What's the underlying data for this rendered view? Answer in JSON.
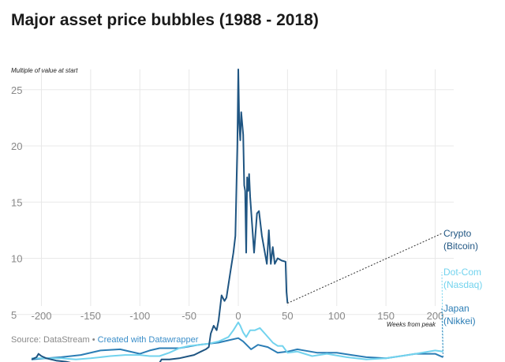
{
  "chart_data": {
    "type": "line",
    "title": "Major asset price bubbles (1988 - 2018)",
    "ylabel": "Multiple of value at start",
    "xlabel": "Weeks from peak",
    "xlim": [
      -210,
      210
    ],
    "ylim": [
      0.5,
      27
    ],
    "xticks": [
      -200,
      -150,
      -100,
      -50,
      0,
      50,
      100,
      150,
      200
    ],
    "yticks": [
      5,
      10,
      15,
      20,
      25
    ],
    "grid": true,
    "series": [
      {
        "name": "Crypto (Bitcoin)",
        "label_lines": [
          "Crypto",
          "(Bitcoin)"
        ],
        "color": "#1f5582",
        "points": [
          [
            -210,
            1.0
          ],
          [
            -205,
            1.2
          ],
          [
            -203,
            1.5
          ],
          [
            -200,
            1.3
          ],
          [
            -195,
            1.1
          ],
          [
            -185,
            0.9
          ],
          [
            -175,
            0.8
          ],
          [
            -165,
            0.6
          ],
          [
            -150,
            0.5
          ],
          [
            -135,
            0.45
          ],
          [
            -120,
            0.4
          ],
          [
            -110,
            0.55
          ],
          [
            -100,
            0.6
          ],
          [
            -90,
            0.6
          ],
          [
            -80,
            0.7
          ],
          [
            -78,
            1.0
          ],
          [
            -70,
            1.0
          ],
          [
            -60,
            1.1
          ],
          [
            -50,
            1.3
          ],
          [
            -45,
            1.4
          ],
          [
            -38,
            1.7
          ],
          [
            -33,
            1.9
          ],
          [
            -30,
            2.1
          ],
          [
            -28,
            3.3
          ],
          [
            -25,
            4.0
          ],
          [
            -22,
            3.6
          ],
          [
            -20,
            4.5
          ],
          [
            -17,
            6.7
          ],
          [
            -14,
            6.2
          ],
          [
            -12,
            6.5
          ],
          [
            -8,
            8.8
          ],
          [
            -5,
            10.5
          ],
          [
            -3,
            12
          ],
          [
            -1,
            20
          ],
          [
            0,
            28
          ],
          [
            1,
            22
          ],
          [
            2,
            20.5
          ],
          [
            3,
            23
          ],
          [
            5,
            21
          ],
          [
            6,
            16.5
          ],
          [
            7,
            16
          ],
          [
            8,
            10.5
          ],
          [
            9,
            17.2
          ],
          [
            10,
            16
          ],
          [
            11,
            17.5
          ],
          [
            12,
            15.5
          ],
          [
            14,
            13
          ],
          [
            16,
            10.5
          ],
          [
            19,
            14
          ],
          [
            21,
            14.2
          ],
          [
            24,
            12
          ],
          [
            27,
            10.5
          ],
          [
            29,
            9.5
          ],
          [
            31,
            12.5
          ],
          [
            33,
            9.5
          ],
          [
            35,
            11
          ],
          [
            37,
            9.5
          ],
          [
            40,
            10
          ],
          [
            44,
            9.8
          ],
          [
            48,
            9.7
          ],
          [
            49,
            7
          ],
          [
            50,
            6
          ]
        ]
      },
      {
        "name": "Dot-Com (Nasdaq)",
        "label_lines": [
          "Dot-Com",
          "(Nasdaq)"
        ],
        "color": "#72d3ee",
        "points": [
          [
            -210,
            1.1
          ],
          [
            -195,
            1.1
          ],
          [
            -180,
            1.1
          ],
          [
            -165,
            1.0
          ],
          [
            -150,
            1.1
          ],
          [
            -130,
            1.3
          ],
          [
            -115,
            1.4
          ],
          [
            -100,
            1.4
          ],
          [
            -90,
            1.3
          ],
          [
            -80,
            1.3
          ],
          [
            -70,
            1.6
          ],
          [
            -60,
            2.0
          ],
          [
            -50,
            2.2
          ],
          [
            -40,
            2.3
          ],
          [
            -30,
            2.4
          ],
          [
            -20,
            2.6
          ],
          [
            -10,
            3.0
          ],
          [
            -5,
            3.6
          ],
          [
            0,
            4.3
          ],
          [
            2,
            4.0
          ],
          [
            5,
            3.4
          ],
          [
            8,
            3.0
          ],
          [
            12,
            3.6
          ],
          [
            17,
            3.6
          ],
          [
            22,
            3.8
          ],
          [
            27,
            3.3
          ],
          [
            35,
            2.5
          ],
          [
            40,
            2.2
          ],
          [
            45,
            2.2
          ],
          [
            50,
            1.6
          ],
          [
            60,
            1.7
          ],
          [
            75,
            1.3
          ],
          [
            90,
            1.5
          ],
          [
            110,
            1.2
          ],
          [
            130,
            1.0
          ],
          [
            150,
            1.1
          ],
          [
            165,
            1.3
          ],
          [
            180,
            1.5
          ],
          [
            200,
            1.8
          ],
          [
            208,
            1.7
          ]
        ]
      },
      {
        "name": "Japan (Nikkei)",
        "label_lines": [
          "Japan",
          "(Nikkei)"
        ],
        "color": "#2b7db5",
        "points": [
          [
            -210,
            1.0
          ],
          [
            -195,
            1.1
          ],
          [
            -180,
            1.2
          ],
          [
            -160,
            1.4
          ],
          [
            -140,
            1.8
          ],
          [
            -120,
            1.9
          ],
          [
            -100,
            1.5
          ],
          [
            -90,
            1.8
          ],
          [
            -80,
            2.0
          ],
          [
            -60,
            2.0
          ],
          [
            -40,
            2.3
          ],
          [
            -20,
            2.5
          ],
          [
            -10,
            2.7
          ],
          [
            0,
            2.9
          ],
          [
            5,
            2.6
          ],
          [
            13,
            1.9
          ],
          [
            20,
            2.3
          ],
          [
            30,
            2.1
          ],
          [
            40,
            1.6
          ],
          [
            50,
            1.7
          ],
          [
            60,
            1.9
          ],
          [
            80,
            1.6
          ],
          [
            100,
            1.6
          ],
          [
            115,
            1.4
          ],
          [
            130,
            1.2
          ],
          [
            150,
            1.1
          ],
          [
            165,
            1.3
          ],
          [
            180,
            1.5
          ],
          [
            200,
            1.5
          ],
          [
            208,
            1.2
          ]
        ]
      }
    ]
  },
  "footer": {
    "source": "Source: DataStream",
    "separator": " • ",
    "credit": "Created with Datawrapper"
  }
}
